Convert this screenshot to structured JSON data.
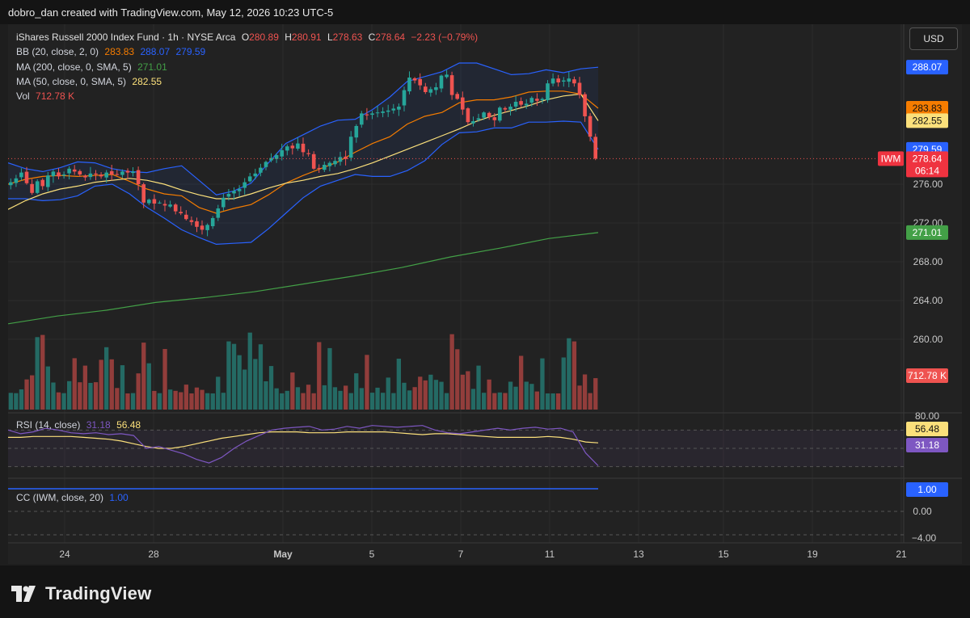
{
  "header": {
    "credit": "dobro_dan created with TradingView.com, May 12, 2026 10:23 UTC-5"
  },
  "symbol": {
    "name": "iShares Russell 2000 Index Fund · 1h · NYSE Arca",
    "o_label": "O",
    "o": "280.89",
    "h_label": "H",
    "h": "280.91",
    "l_label": "L",
    "l": "278.63",
    "c_label": "C",
    "c": "278.64",
    "change": "−2.23 (−0.79%)"
  },
  "indicators": {
    "bb": {
      "label": "BB (20, close, 2, 0)",
      "basis": "283.83",
      "upper": "288.07",
      "lower": "279.59"
    },
    "ma200": {
      "label": "MA (200, close, 0, SMA, 5)",
      "value": "271.01"
    },
    "ma50": {
      "label": "MA (50, close, 0, SMA, 5)",
      "value": "282.55"
    },
    "vol": {
      "label": "Vol",
      "value": "712.78 K"
    }
  },
  "rsi": {
    "label": "RSI (14, close)",
    "value": "31.18",
    "ma_value": "56.48",
    "top_tick": "80.00"
  },
  "cc": {
    "label": "CC (IWM, close, 20)",
    "value": "1.00",
    "ticks": [
      "1.00",
      "0.00",
      "−4.00"
    ]
  },
  "currency_button": "USD",
  "price_tag": {
    "ticker": "IWM",
    "price": "278.64",
    "countdown": "06:14"
  },
  "colors": {
    "up": "#26a69a",
    "down": "#ef5350",
    "bb_band": "#2962ff",
    "bb_basis": "#f57c00",
    "ma50": "#fbe07b",
    "ma200": "#43a047",
    "rsi": "#7e57c2"
  },
  "chart_data": {
    "type": "candlestick",
    "title": "iShares Russell 2000 Index Fund · 1h · NYSE Arca",
    "x_tick_labels": [
      "24",
      "28",
      "May",
      "5",
      "7",
      "11",
      "13",
      "15",
      "19",
      "21"
    ],
    "y_tick_labels": [
      "276.00",
      "272.00",
      "268.00",
      "264.00",
      "260.00"
    ],
    "ylim": [
      258,
      290
    ],
    "series": [
      {
        "name": "Close",
        "values": [
          276.2,
          276.6,
          277.2,
          276.1,
          275.1,
          276.3,
          275.8,
          276.9,
          277.3,
          276.8,
          277.0,
          277.6,
          277.3,
          277.0,
          276.7,
          277.1,
          277.0,
          276.8,
          277.2,
          277.0,
          277.0,
          277.3,
          277.2,
          277.3,
          276.0,
          274.1,
          274.4,
          274.0,
          274.1,
          273.8,
          273.9,
          273.2,
          273.0,
          272.4,
          272.1,
          271.6,
          271.3,
          271.8,
          272.5,
          273.5,
          274.6,
          275.0,
          275.3,
          275.5,
          276.2,
          276.8,
          277.1,
          277.7,
          278.3,
          278.7,
          279.0,
          279.5,
          279.9,
          279.7,
          280.2,
          279.3,
          279.1,
          277.6,
          277.6,
          278.0,
          278.2,
          278.4,
          278.8,
          278.6,
          280.9,
          282.0,
          283.3,
          283.1,
          283.3,
          283.4,
          283.5,
          283.6,
          283.8,
          284.0,
          285.7,
          287.0,
          286.7,
          286.2,
          285.5,
          285.8,
          286.0,
          287.2,
          287.3,
          285.2,
          284.8,
          283.7,
          282.4,
          282.5,
          282.8,
          283.4,
          282.9,
          282.6,
          283.9,
          283.7,
          284.0,
          284.5,
          284.2,
          284.3,
          284.9,
          284.6,
          284.8,
          286.4,
          286.9,
          286.5,
          286.7,
          286.9,
          286.4,
          285.2,
          283.0,
          280.9,
          278.64
        ]
      },
      {
        "name": "BB Upper",
        "values": [
          278.2,
          277.6,
          277.3,
          277.7,
          278.3,
          278.2,
          277.6,
          277.3,
          277.2,
          277.6,
          277.9,
          276.4,
          274.9,
          275.3,
          276.1,
          278.2,
          280.2,
          281.1,
          282.0,
          282.6,
          282.7,
          283.7,
          285.0,
          286.6,
          287.1,
          287.6,
          288.5,
          288.5,
          287.9,
          287.3,
          287.4,
          287.8,
          287.5,
          287.9,
          288.07
        ]
      },
      {
        "name": "BB Basis",
        "values": [
          276.0,
          276.5,
          276.8,
          276.9,
          276.8,
          276.9,
          277.0,
          276.3,
          275.5,
          275.0,
          274.8,
          273.6,
          273.0,
          273.5,
          273.9,
          274.9,
          276.1,
          276.9,
          277.6,
          278.3,
          279.3,
          280.2,
          280.9,
          282.2,
          283.0,
          283.4,
          284.4,
          284.7,
          284.7,
          285.0,
          285.5,
          285.6,
          285.6,
          285.3,
          283.83
        ]
      },
      {
        "name": "BB Lower",
        "values": [
          274.5,
          274.5,
          274.3,
          274.4,
          274.8,
          275.8,
          276.0,
          275.0,
          273.6,
          272.5,
          271.3,
          270.5,
          269.8,
          269.9,
          270.0,
          271.4,
          273.0,
          274.6,
          275.8,
          276.4,
          277.0,
          276.8,
          276.8,
          277.4,
          278.4,
          280.1,
          281.3,
          281.4,
          281.8,
          281.8,
          282.4,
          282.4,
          282.5,
          282.4,
          279.59
        ]
      },
      {
        "name": "MA 50",
        "values": [
          273.4,
          274.3,
          275.0,
          275.5,
          275.8,
          276.2,
          276.4,
          276.6,
          276.4,
          276.0,
          275.4,
          274.9,
          274.5,
          274.5,
          275.0,
          275.6,
          276.1,
          276.4,
          276.8,
          277.1,
          277.6,
          278.2,
          278.9,
          279.6,
          280.3,
          281.0,
          281.7,
          282.5,
          283.1,
          283.6,
          284.1,
          284.7,
          285.1,
          285.3,
          282.55
        ]
      },
      {
        "name": "MA 200",
        "values": [
          261.6,
          262.4,
          263.0,
          263.8,
          264.3,
          264.9,
          265.7,
          266.5,
          267.4,
          268.5,
          269.4,
          270.4,
          271.01
        ]
      }
    ],
    "volume_max_k": 1000,
    "volume_current": "712.78 K"
  }
}
